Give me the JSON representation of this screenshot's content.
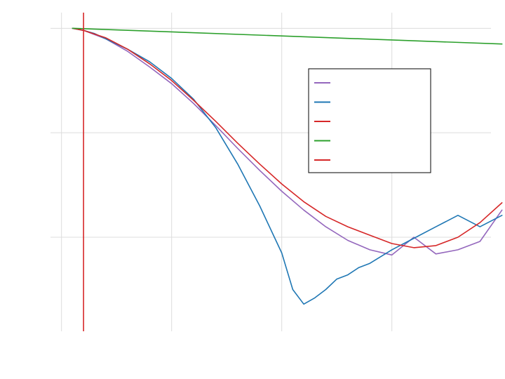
{
  "chart_data": {
    "type": "line",
    "title": "",
    "xlabel": "",
    "ylabel": "",
    "xlim": [
      -1,
      39
    ],
    "ylim": [
      -0.29,
      0.015
    ],
    "xticks": [
      0,
      10,
      20,
      30,
      40
    ],
    "yticks": [
      0,
      -0.1,
      -0.2
    ],
    "grid": true,
    "legend": {
      "position": "upper-right"
    },
    "vertical_line": {
      "x": 2,
      "color": "#d62728"
    },
    "series": [
      {
        "color": "#9467bd",
        "x": [
          1,
          2,
          4,
          6,
          8,
          10,
          12,
          14,
          16,
          18,
          20,
          22,
          24,
          26,
          28,
          30,
          32,
          34,
          36,
          38,
          40
        ],
        "y": [
          0,
          -0.002,
          -0.01,
          -0.022,
          -0.037,
          -0.053,
          -0.072,
          -0.093,
          -0.115,
          -0.136,
          -0.156,
          -0.174,
          -0.19,
          -0.203,
          -0.212,
          -0.217,
          -0.2,
          -0.216,
          -0.212,
          -0.204,
          -0.174
        ]
      },
      {
        "color": "#1f77b4",
        "x": [
          1,
          2,
          3,
          4,
          6,
          8,
          10,
          12,
          14,
          16,
          18,
          20,
          21,
          22,
          23,
          24,
          25,
          26,
          27,
          28,
          30,
          32,
          34,
          36,
          38,
          40
        ],
        "y": [
          0,
          -0.002,
          -0.005,
          -0.01,
          -0.02,
          -0.032,
          -0.048,
          -0.068,
          -0.095,
          -0.13,
          -0.17,
          -0.215,
          -0.25,
          -0.264,
          -0.258,
          -0.25,
          -0.24,
          -0.236,
          -0.229,
          -0.225,
          -0.212,
          -0.201,
          -0.19,
          -0.179,
          -0.19,
          -0.179
        ]
      },
      {
        "color": "#d62728",
        "x": [
          1,
          2,
          4,
          6,
          8,
          10,
          12,
          14,
          16,
          18,
          20,
          22,
          24,
          26,
          28,
          30,
          32,
          34,
          36,
          38,
          40
        ],
        "y": [
          0,
          -0.002,
          -0.009,
          -0.02,
          -0.034,
          -0.05,
          -0.069,
          -0.089,
          -0.11,
          -0.13,
          -0.149,
          -0.166,
          -0.18,
          -0.19,
          -0.198,
          -0.206,
          -0.21,
          -0.208,
          -0.2,
          -0.186,
          -0.167
        ]
      },
      {
        "color": "#2ca02c",
        "x": [
          1,
          40
        ],
        "y": [
          0,
          -0.015
        ]
      },
      {
        "color": "#d62728",
        "x": [],
        "y": []
      }
    ]
  }
}
